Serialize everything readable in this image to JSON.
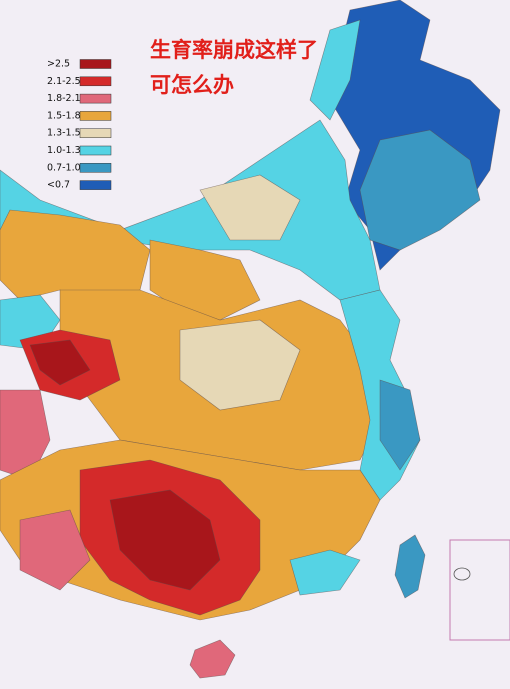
{
  "title": {
    "line1": "生育率崩成这样了",
    "line2": "可怎么办"
  },
  "legend": [
    {
      "label": ">2.5",
      "color": "#a8161b"
    },
    {
      "label": "2.1-2.5",
      "color": "#d42a2a"
    },
    {
      "label": "1.8-2.1",
      "color": "#e0687a"
    },
    {
      "label": "1.5-1.8",
      "color": "#e8a63c"
    },
    {
      "label": "1.3-1.5",
      "color": "#e6d8b6"
    },
    {
      "label": "1.0-1.3",
      "color": "#55d3e4"
    },
    {
      "label": "0.7-1.0",
      "color": "#3a98c2"
    },
    {
      "label": "<0.7",
      "color": "#1f5db6"
    }
  ]
}
